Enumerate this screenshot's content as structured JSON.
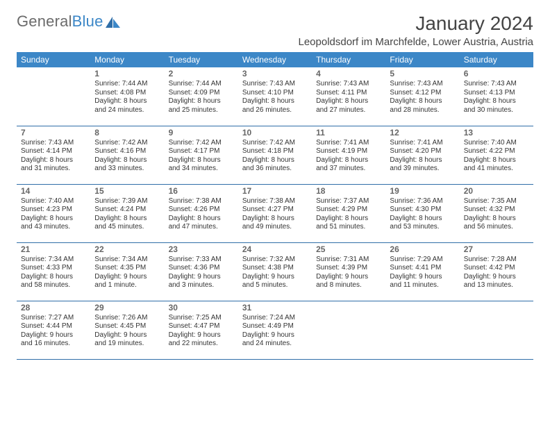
{
  "logo": {
    "part1": "General",
    "part2": "Blue"
  },
  "title": "January 2024",
  "location": "Leopoldsdorf im Marchfelde, Lower Austria, Austria",
  "colors": {
    "header_bg": "#3c87c7",
    "header_text": "#ffffff",
    "row_border": "#2f6ea8",
    "body_text": "#333333",
    "daynum_text": "#666666",
    "logo_gray": "#6b6b6b",
    "logo_blue": "#3c87c7"
  },
  "typography": {
    "title_fontsize": 28,
    "location_fontsize": 15,
    "weekday_fontsize": 12,
    "cell_fontsize": 10,
    "daynum_fontsize": 12
  },
  "weekdays": [
    "Sunday",
    "Monday",
    "Tuesday",
    "Wednesday",
    "Thursday",
    "Friday",
    "Saturday"
  ],
  "weeks": [
    [
      null,
      {
        "n": "1",
        "sr": "Sunrise: 7:44 AM",
        "ss": "Sunset: 4:08 PM",
        "dl1": "Daylight: 8 hours",
        "dl2": "and 24 minutes."
      },
      {
        "n": "2",
        "sr": "Sunrise: 7:44 AM",
        "ss": "Sunset: 4:09 PM",
        "dl1": "Daylight: 8 hours",
        "dl2": "and 25 minutes."
      },
      {
        "n": "3",
        "sr": "Sunrise: 7:43 AM",
        "ss": "Sunset: 4:10 PM",
        "dl1": "Daylight: 8 hours",
        "dl2": "and 26 minutes."
      },
      {
        "n": "4",
        "sr": "Sunrise: 7:43 AM",
        "ss": "Sunset: 4:11 PM",
        "dl1": "Daylight: 8 hours",
        "dl2": "and 27 minutes."
      },
      {
        "n": "5",
        "sr": "Sunrise: 7:43 AM",
        "ss": "Sunset: 4:12 PM",
        "dl1": "Daylight: 8 hours",
        "dl2": "and 28 minutes."
      },
      {
        "n": "6",
        "sr": "Sunrise: 7:43 AM",
        "ss": "Sunset: 4:13 PM",
        "dl1": "Daylight: 8 hours",
        "dl2": "and 30 minutes."
      }
    ],
    [
      {
        "n": "7",
        "sr": "Sunrise: 7:43 AM",
        "ss": "Sunset: 4:14 PM",
        "dl1": "Daylight: 8 hours",
        "dl2": "and 31 minutes."
      },
      {
        "n": "8",
        "sr": "Sunrise: 7:42 AM",
        "ss": "Sunset: 4:16 PM",
        "dl1": "Daylight: 8 hours",
        "dl2": "and 33 minutes."
      },
      {
        "n": "9",
        "sr": "Sunrise: 7:42 AM",
        "ss": "Sunset: 4:17 PM",
        "dl1": "Daylight: 8 hours",
        "dl2": "and 34 minutes."
      },
      {
        "n": "10",
        "sr": "Sunrise: 7:42 AM",
        "ss": "Sunset: 4:18 PM",
        "dl1": "Daylight: 8 hours",
        "dl2": "and 36 minutes."
      },
      {
        "n": "11",
        "sr": "Sunrise: 7:41 AM",
        "ss": "Sunset: 4:19 PM",
        "dl1": "Daylight: 8 hours",
        "dl2": "and 37 minutes."
      },
      {
        "n": "12",
        "sr": "Sunrise: 7:41 AM",
        "ss": "Sunset: 4:20 PM",
        "dl1": "Daylight: 8 hours",
        "dl2": "and 39 minutes."
      },
      {
        "n": "13",
        "sr": "Sunrise: 7:40 AM",
        "ss": "Sunset: 4:22 PM",
        "dl1": "Daylight: 8 hours",
        "dl2": "and 41 minutes."
      }
    ],
    [
      {
        "n": "14",
        "sr": "Sunrise: 7:40 AM",
        "ss": "Sunset: 4:23 PM",
        "dl1": "Daylight: 8 hours",
        "dl2": "and 43 minutes."
      },
      {
        "n": "15",
        "sr": "Sunrise: 7:39 AM",
        "ss": "Sunset: 4:24 PM",
        "dl1": "Daylight: 8 hours",
        "dl2": "and 45 minutes."
      },
      {
        "n": "16",
        "sr": "Sunrise: 7:38 AM",
        "ss": "Sunset: 4:26 PM",
        "dl1": "Daylight: 8 hours",
        "dl2": "and 47 minutes."
      },
      {
        "n": "17",
        "sr": "Sunrise: 7:38 AM",
        "ss": "Sunset: 4:27 PM",
        "dl1": "Daylight: 8 hours",
        "dl2": "and 49 minutes."
      },
      {
        "n": "18",
        "sr": "Sunrise: 7:37 AM",
        "ss": "Sunset: 4:29 PM",
        "dl1": "Daylight: 8 hours",
        "dl2": "and 51 minutes."
      },
      {
        "n": "19",
        "sr": "Sunrise: 7:36 AM",
        "ss": "Sunset: 4:30 PM",
        "dl1": "Daylight: 8 hours",
        "dl2": "and 53 minutes."
      },
      {
        "n": "20",
        "sr": "Sunrise: 7:35 AM",
        "ss": "Sunset: 4:32 PM",
        "dl1": "Daylight: 8 hours",
        "dl2": "and 56 minutes."
      }
    ],
    [
      {
        "n": "21",
        "sr": "Sunrise: 7:34 AM",
        "ss": "Sunset: 4:33 PM",
        "dl1": "Daylight: 8 hours",
        "dl2": "and 58 minutes."
      },
      {
        "n": "22",
        "sr": "Sunrise: 7:34 AM",
        "ss": "Sunset: 4:35 PM",
        "dl1": "Daylight: 9 hours",
        "dl2": "and 1 minute."
      },
      {
        "n": "23",
        "sr": "Sunrise: 7:33 AM",
        "ss": "Sunset: 4:36 PM",
        "dl1": "Daylight: 9 hours",
        "dl2": "and 3 minutes."
      },
      {
        "n": "24",
        "sr": "Sunrise: 7:32 AM",
        "ss": "Sunset: 4:38 PM",
        "dl1": "Daylight: 9 hours",
        "dl2": "and 5 minutes."
      },
      {
        "n": "25",
        "sr": "Sunrise: 7:31 AM",
        "ss": "Sunset: 4:39 PM",
        "dl1": "Daylight: 9 hours",
        "dl2": "and 8 minutes."
      },
      {
        "n": "26",
        "sr": "Sunrise: 7:29 AM",
        "ss": "Sunset: 4:41 PM",
        "dl1": "Daylight: 9 hours",
        "dl2": "and 11 minutes."
      },
      {
        "n": "27",
        "sr": "Sunrise: 7:28 AM",
        "ss": "Sunset: 4:42 PM",
        "dl1": "Daylight: 9 hours",
        "dl2": "and 13 minutes."
      }
    ],
    [
      {
        "n": "28",
        "sr": "Sunrise: 7:27 AM",
        "ss": "Sunset: 4:44 PM",
        "dl1": "Daylight: 9 hours",
        "dl2": "and 16 minutes."
      },
      {
        "n": "29",
        "sr": "Sunrise: 7:26 AM",
        "ss": "Sunset: 4:45 PM",
        "dl1": "Daylight: 9 hours",
        "dl2": "and 19 minutes."
      },
      {
        "n": "30",
        "sr": "Sunrise: 7:25 AM",
        "ss": "Sunset: 4:47 PM",
        "dl1": "Daylight: 9 hours",
        "dl2": "and 22 minutes."
      },
      {
        "n": "31",
        "sr": "Sunrise: 7:24 AM",
        "ss": "Sunset: 4:49 PM",
        "dl1": "Daylight: 9 hours",
        "dl2": "and 24 minutes."
      },
      null,
      null,
      null
    ]
  ]
}
